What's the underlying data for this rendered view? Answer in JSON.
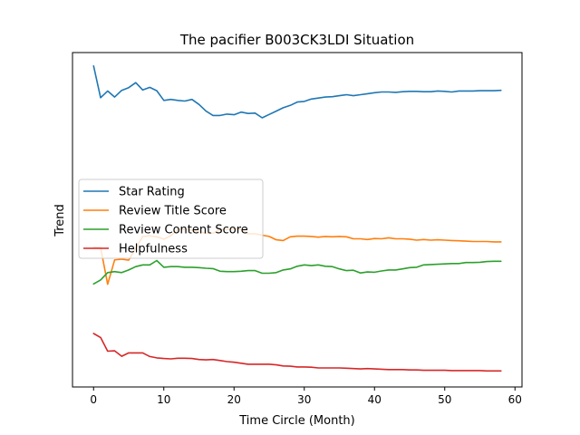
{
  "chart_data": {
    "type": "line",
    "title": "The pacifier B003CK3LDI Situation",
    "xlabel": "Time Circle (Month)",
    "ylabel": "Trend",
    "xlim": [
      -3,
      61
    ],
    "ylim": [
      0,
      100
    ],
    "xticks": [
      0,
      10,
      20,
      30,
      40,
      50,
      60
    ],
    "yticks_shown": false,
    "grid": false,
    "legend_position": "center-left",
    "x": [
      0,
      1,
      2,
      3,
      4,
      5,
      6,
      7,
      8,
      9,
      10,
      11,
      12,
      13,
      14,
      15,
      16,
      17,
      18,
      19,
      20,
      21,
      22,
      23,
      24,
      25,
      26,
      27,
      28,
      29,
      30,
      31,
      32,
      33,
      34,
      35,
      36,
      37,
      38,
      39,
      40,
      41,
      42,
      43,
      44,
      45,
      46,
      47,
      48,
      49,
      50,
      51,
      52,
      53,
      54,
      55,
      56,
      57,
      58
    ],
    "series": [
      {
        "name": "Star Rating",
        "color": "#1f77b4",
        "values": [
          96.0,
          86.5,
          88.5,
          86.7,
          88.7,
          89.5,
          91.0,
          88.8,
          89.6,
          88.6,
          85.7,
          86.0,
          85.7,
          85.5,
          86.0,
          84.5,
          82.5,
          81.2,
          81.2,
          81.6,
          81.4,
          82.2,
          81.8,
          81.9,
          80.5,
          81.5,
          82.5,
          83.5,
          84.2,
          85.2,
          85.4,
          86.1,
          86.4,
          86.7,
          86.8,
          87.1,
          87.4,
          87.1,
          87.4,
          87.7,
          88.0,
          88.2,
          88.2,
          88.1,
          88.3,
          88.4,
          88.4,
          88.3,
          88.3,
          88.5,
          88.4,
          88.2,
          88.5,
          88.5,
          88.5,
          88.6,
          88.6,
          88.6,
          88.7
        ]
      },
      {
        "name": "Review Title Score",
        "color": "#ff7f0e",
        "values": [
          41.8,
          41.7,
          30.7,
          38.0,
          38.2,
          37.9,
          41.5,
          45.0,
          45.2,
          44.9,
          44.2,
          45.2,
          47.1,
          47.1,
          46.9,
          46.4,
          46.0,
          46.0,
          47.1,
          47.0,
          47.4,
          47.1,
          45.8,
          45.8,
          45.4,
          45.0,
          44.0,
          43.8,
          44.9,
          45.1,
          45.1,
          45.0,
          44.8,
          45.0,
          44.9,
          45.0,
          44.9,
          44.3,
          44.3,
          44.1,
          44.4,
          44.3,
          44.6,
          44.3,
          44.3,
          44.2,
          43.9,
          44.1,
          43.9,
          44.0,
          43.9,
          43.8,
          43.7,
          43.6,
          43.5,
          43.5,
          43.5,
          43.4,
          43.4
        ]
      },
      {
        "name": "Review Content Score",
        "color": "#2ca02c",
        "values": [
          30.8,
          32.0,
          34.2,
          34.5,
          34.2,
          35.0,
          36.0,
          36.5,
          36.5,
          37.8,
          35.8,
          36.0,
          36.0,
          35.8,
          35.8,
          35.7,
          35.5,
          35.4,
          34.6,
          34.5,
          34.5,
          34.6,
          34.8,
          34.8,
          34.0,
          34.0,
          34.2,
          35.0,
          35.3,
          36.1,
          36.5,
          36.3,
          36.5,
          36.1,
          36.0,
          35.3,
          34.8,
          34.9,
          34.1,
          34.4,
          34.3,
          34.7,
          35.0,
          35.0,
          35.3,
          35.7,
          35.8,
          36.5,
          36.6,
          36.7,
          36.8,
          36.9,
          36.9,
          37.2,
          37.2,
          37.3,
          37.5,
          37.6,
          37.6
        ]
      },
      {
        "name": "Helpfulness",
        "color": "#d62728",
        "values": [
          16.0,
          14.8,
          10.7,
          10.8,
          9.2,
          10.2,
          10.2,
          10.2,
          9.1,
          8.7,
          8.5,
          8.4,
          8.6,
          8.6,
          8.5,
          8.2,
          8.1,
          8.2,
          7.9,
          7.6,
          7.4,
          7.1,
          6.8,
          6.8,
          6.8,
          6.8,
          6.6,
          6.3,
          6.2,
          6.0,
          6.0,
          5.9,
          5.7,
          5.7,
          5.7,
          5.7,
          5.6,
          5.5,
          5.4,
          5.5,
          5.4,
          5.3,
          5.2,
          5.2,
          5.2,
          5.1,
          5.1,
          5.0,
          5.0,
          5.0,
          5.0,
          4.9,
          4.9,
          4.9,
          4.9,
          4.9,
          4.8,
          4.8,
          4.8
        ]
      }
    ]
  }
}
